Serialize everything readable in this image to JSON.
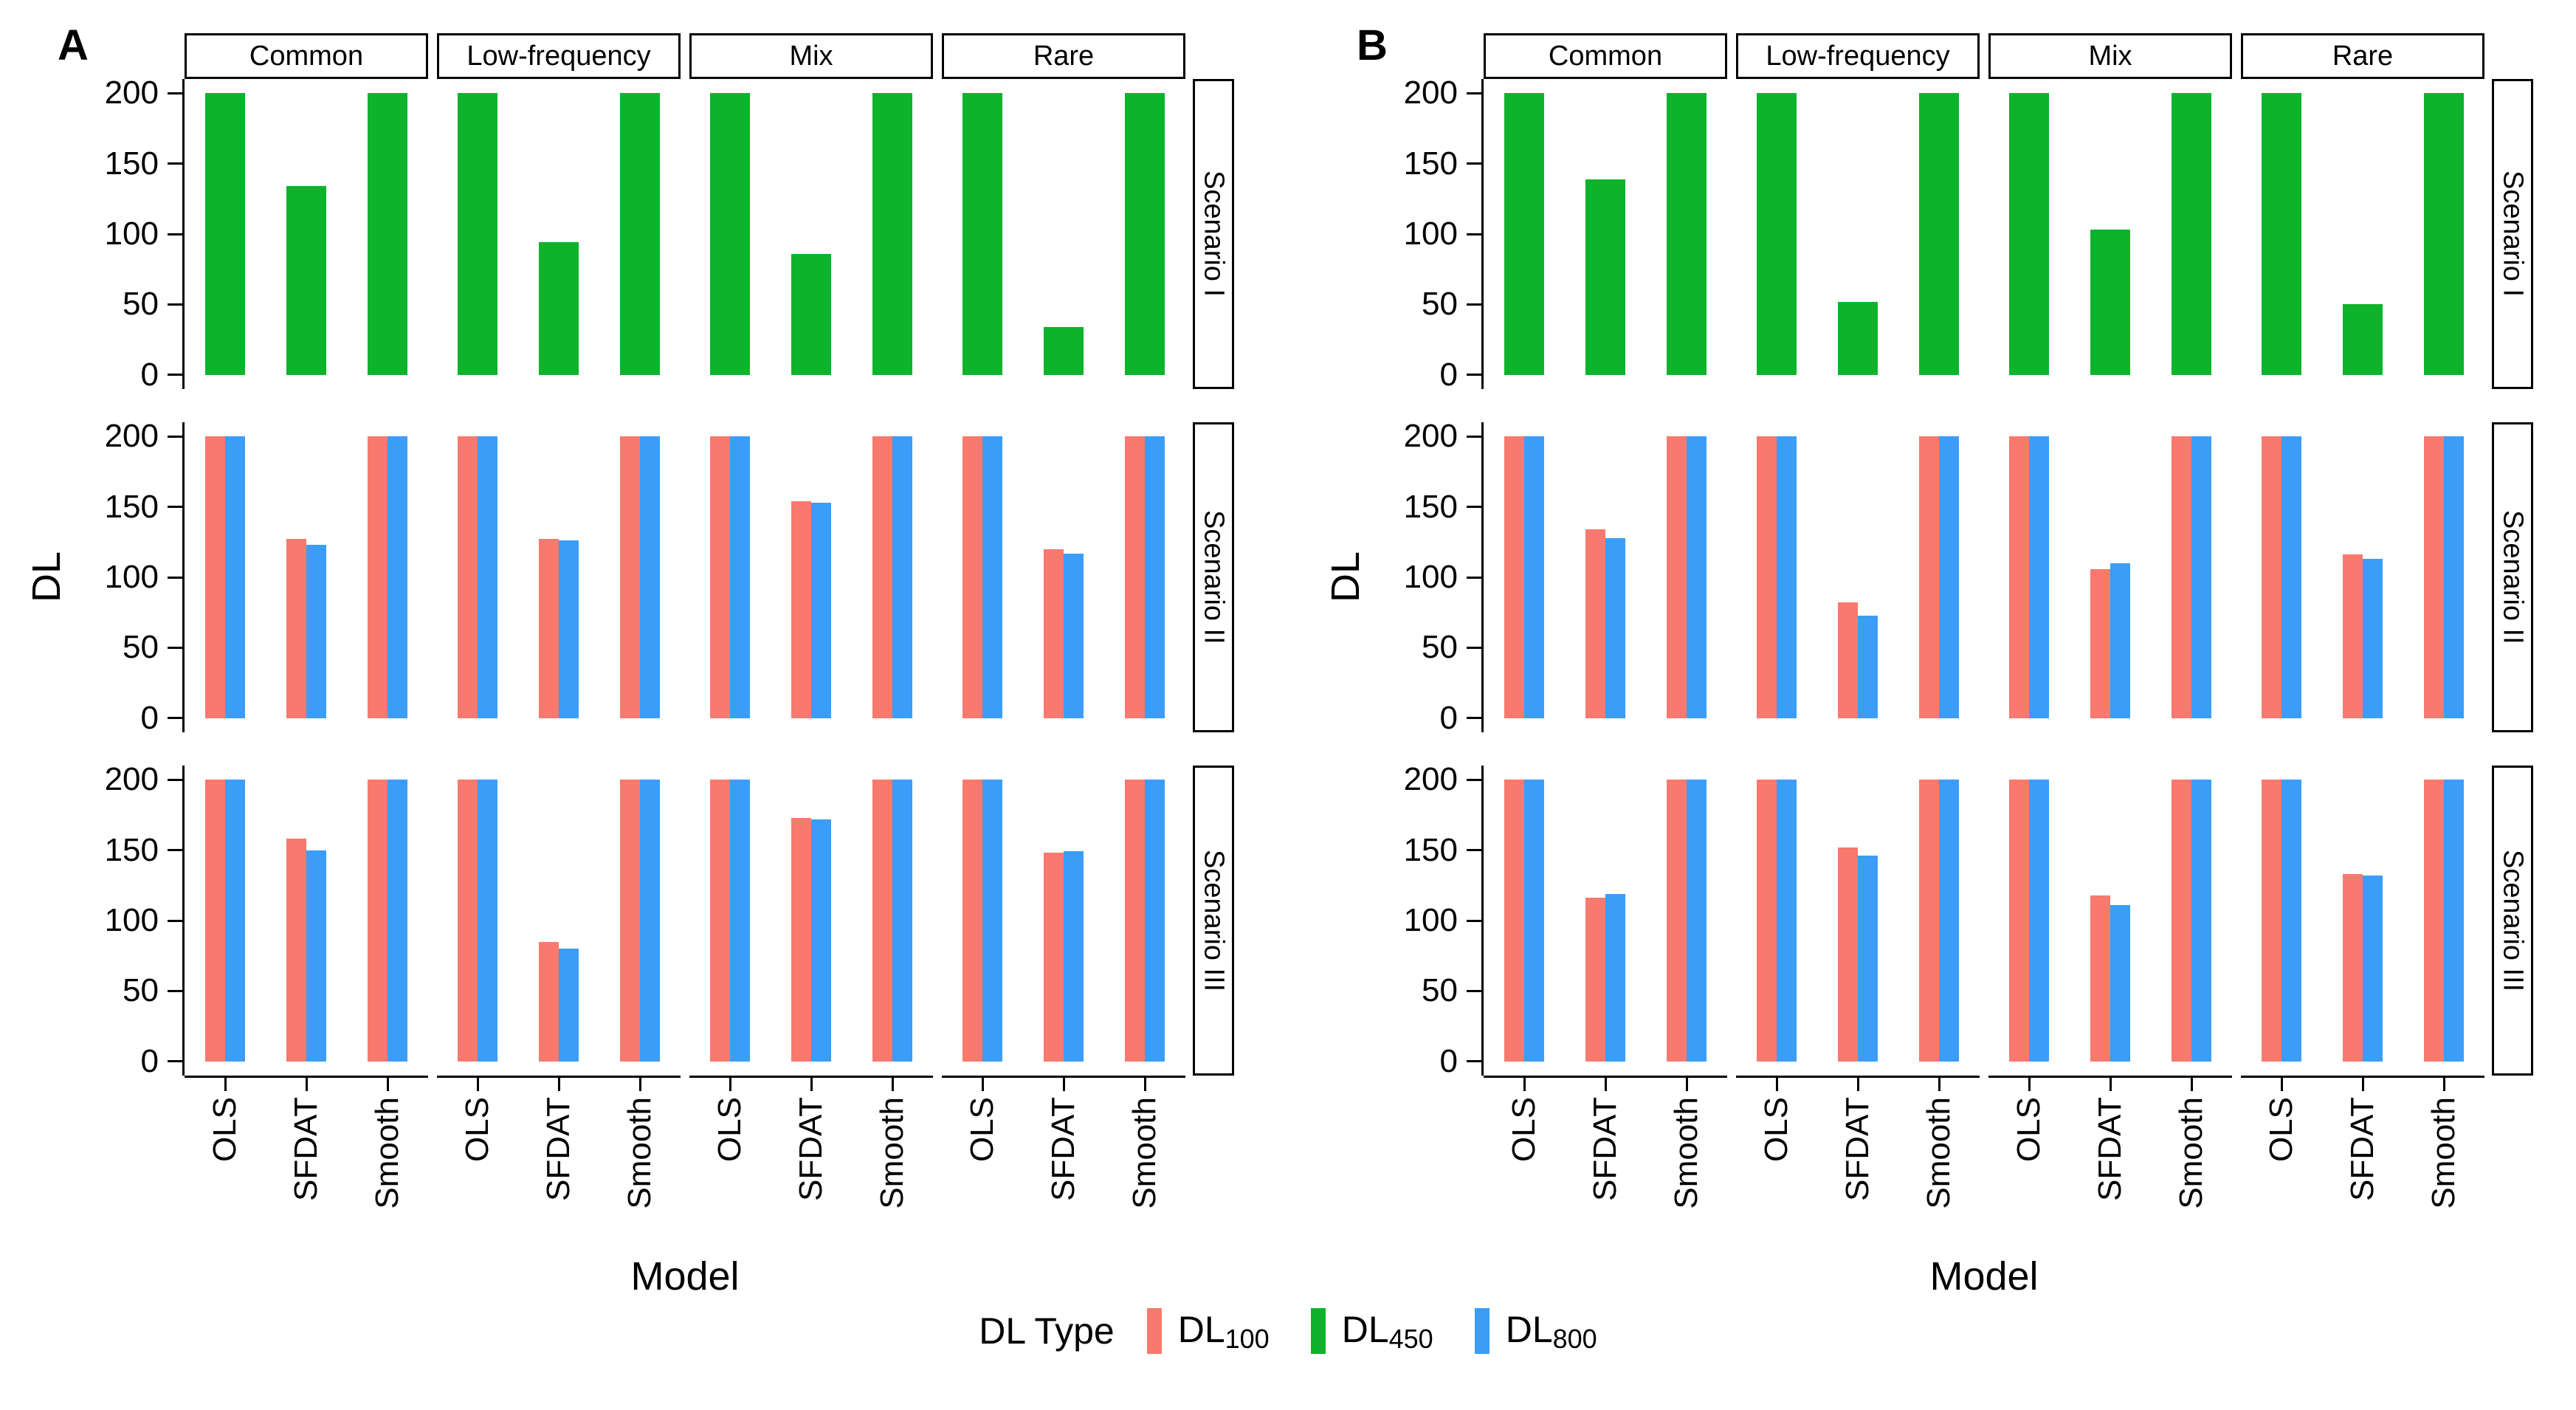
{
  "chart_data": {
    "type": "bar",
    "title": "",
    "xlabel": "Model",
    "ylabel": "DL",
    "ylim": [
      0,
      200
    ],
    "y_ticks": [
      0,
      50,
      100,
      150,
      200
    ],
    "grid": false,
    "legend_position": "bottom",
    "models": [
      "OLS",
      "SFDAT",
      "Smooth"
    ],
    "facet_columns": [
      "Common",
      "Low-frequency",
      "Mix",
      "Rare"
    ],
    "facet_rows": [
      "Scenario I",
      "Scenario II",
      "Scenario III"
    ],
    "series": [
      {
        "name": "DL100",
        "label_base": "DL",
        "label_sub": "100",
        "color": "#F8796E"
      },
      {
        "name": "DL450",
        "label_base": "DL",
        "label_sub": "450",
        "color": "#0DB32B"
      },
      {
        "name": "DL800",
        "label_base": "DL",
        "label_sub": "800",
        "color": "#3B9DF8"
      }
    ],
    "legend": {
      "title": "DL Type"
    },
    "panels": [
      {
        "label": "A",
        "values": [
          [
            [
              [
                null,
                200,
                null
              ],
              [
                null,
                134,
                null
              ],
              [
                null,
                200,
                null
              ]
            ],
            [
              [
                null,
                200,
                null
              ],
              [
                null,
                94,
                null
              ],
              [
                null,
                200,
                null
              ]
            ],
            [
              [
                null,
                200,
                null
              ],
              [
                null,
                86,
                null
              ],
              [
                null,
                200,
                null
              ]
            ],
            [
              [
                null,
                200,
                null
              ],
              [
                null,
                34,
                null
              ],
              [
                null,
                200,
                null
              ]
            ]
          ],
          [
            [
              [
                200,
                null,
                200
              ],
              [
                127,
                null,
                123
              ],
              [
                200,
                null,
                200
              ]
            ],
            [
              [
                200,
                null,
                200
              ],
              [
                127,
                null,
                126
              ],
              [
                200,
                null,
                200
              ]
            ],
            [
              [
                200,
                null,
                200
              ],
              [
                154,
                null,
                153
              ],
              [
                200,
                null,
                200
              ]
            ],
            [
              [
                200,
                null,
                200
              ],
              [
                120,
                null,
                117
              ],
              [
                200,
                null,
                200
              ]
            ]
          ],
          [
            [
              [
                200,
                null,
                200
              ],
              [
                158,
                null,
                150
              ],
              [
                200,
                null,
                200
              ]
            ],
            [
              [
                200,
                null,
                200
              ],
              [
                85,
                null,
                80
              ],
              [
                200,
                null,
                200
              ]
            ],
            [
              [
                200,
                null,
                200
              ],
              [
                173,
                null,
                172
              ],
              [
                200,
                null,
                200
              ]
            ],
            [
              [
                200,
                null,
                200
              ],
              [
                148,
                null,
                149
              ],
              [
                200,
                null,
                200
              ]
            ]
          ]
        ]
      },
      {
        "label": "B",
        "values": [
          [
            [
              [
                null,
                200,
                null
              ],
              [
                null,
                139,
                null
              ],
              [
                null,
                200,
                null
              ]
            ],
            [
              [
                null,
                200,
                null
              ],
              [
                null,
                52,
                null
              ],
              [
                null,
                200,
                null
              ]
            ],
            [
              [
                null,
                200,
                null
              ],
              [
                null,
                103,
                null
              ],
              [
                null,
                200,
                null
              ]
            ],
            [
              [
                null,
                200,
                null
              ],
              [
                null,
                50,
                null
              ],
              [
                null,
                200,
                null
              ]
            ]
          ],
          [
            [
              [
                200,
                null,
                200
              ],
              [
                134,
                null,
                128
              ],
              [
                200,
                null,
                200
              ]
            ],
            [
              [
                200,
                null,
                200
              ],
              [
                82,
                null,
                73
              ],
              [
                200,
                null,
                200
              ]
            ],
            [
              [
                200,
                null,
                200
              ],
              [
                106,
                null,
                110
              ],
              [
                200,
                null,
                200
              ]
            ],
            [
              [
                200,
                null,
                200
              ],
              [
                116,
                null,
                113
              ],
              [
                200,
                null,
                200
              ]
            ]
          ],
          [
            [
              [
                200,
                null,
                200
              ],
              [
                116,
                null,
                119
              ],
              [
                200,
                null,
                200
              ]
            ],
            [
              [
                200,
                null,
                200
              ],
              [
                152,
                null,
                146
              ],
              [
                200,
                null,
                200
              ]
            ],
            [
              [
                200,
                null,
                200
              ],
              [
                118,
                null,
                111
              ],
              [
                200,
                null,
                200
              ]
            ],
            [
              [
                200,
                null,
                200
              ],
              [
                133,
                null,
                132
              ],
              [
                200,
                null,
                200
              ]
            ]
          ]
        ]
      }
    ]
  }
}
